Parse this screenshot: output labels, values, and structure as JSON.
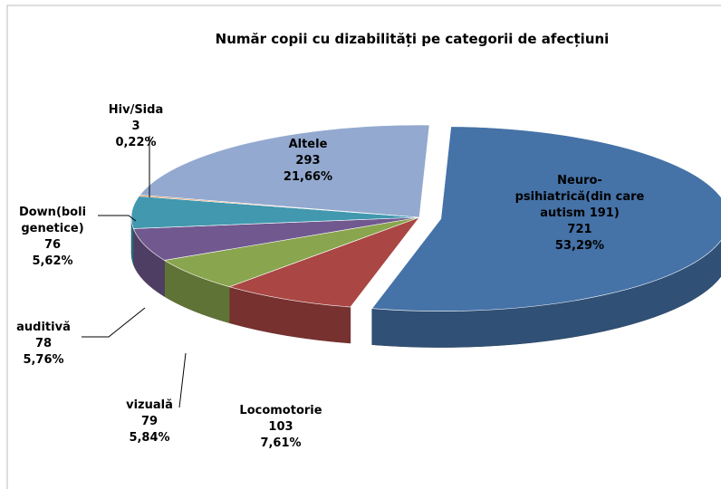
{
  "chart_data": {
    "type": "pie",
    "title": "Număr copii cu dizabilități pe categorii de afecțiuni",
    "categories": [
      "Neuro-psihiatrică(din care autism 191)",
      "Locomotorie",
      "vizuală",
      "auditivă",
      "Down(boli genetice)",
      "Hiv/Sida",
      "Altele"
    ],
    "values": [
      721,
      103,
      79,
      78,
      76,
      3,
      293
    ],
    "percentages": [
      53.29,
      7.61,
      5.84,
      5.76,
      5.62,
      0.22,
      21.66
    ],
    "percentage_labels": [
      "53,29%",
      "7,61%",
      "5,84%",
      "5,76%",
      "5,62%",
      "0,22%",
      "21,66%"
    ],
    "colors": [
      "#4572a7",
      "#aa4643",
      "#89a54e",
      "#71588f",
      "#4198af",
      "#db843d",
      "#93a9cf"
    ]
  }
}
